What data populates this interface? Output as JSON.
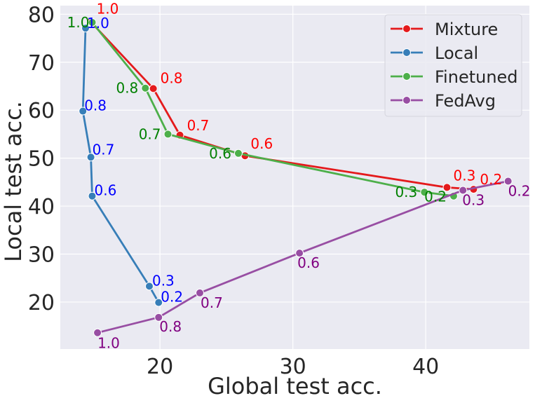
{
  "chart_data": {
    "type": "line",
    "xlabel": "Global test acc.",
    "ylabel": "Local test acc.",
    "xlim": [
      12.5,
      47.8
    ],
    "ylim": [
      10.2,
      81.8
    ],
    "xticks": [
      20,
      30,
      40
    ],
    "yticks": [
      20,
      30,
      40,
      50,
      60,
      70,
      80
    ],
    "grid": true,
    "legend_position": "top-right",
    "series": [
      {
        "name": "Mixture",
        "color": "#e41a1c",
        "points": [
          {
            "x": 14.8,
            "y": 78.4,
            "label": "1.0"
          },
          {
            "x": 19.5,
            "y": 64.5,
            "label": "0.8"
          },
          {
            "x": 21.5,
            "y": 54.8,
            "label": "0.7"
          },
          {
            "x": 26.4,
            "y": 50.5,
            "label": "0.6"
          },
          {
            "x": 41.6,
            "y": 43.9,
            "label": "0.3"
          },
          {
            "x": 43.6,
            "y": 43.5,
            "label": "0.2"
          }
        ]
      },
      {
        "name": "Local",
        "color": "#377eb8",
        "points": [
          {
            "x": 14.4,
            "y": 77.1,
            "label": "1.0"
          },
          {
            "x": 14.2,
            "y": 59.8,
            "label": "0.8"
          },
          {
            "x": 14.8,
            "y": 50.2,
            "label": "0.7"
          },
          {
            "x": 14.9,
            "y": 42.1,
            "label": "0.6"
          },
          {
            "x": 19.2,
            "y": 23.3,
            "label": "0.3"
          },
          {
            "x": 19.9,
            "y": 19.9,
            "label": "0.2"
          }
        ]
      },
      {
        "name": "Finetuned",
        "color": "#4daf4a",
        "points": [
          {
            "x": 14.9,
            "y": 78.3,
            "label": "1.0"
          },
          {
            "x": 18.9,
            "y": 64.6,
            "label": "0.8"
          },
          {
            "x": 20.6,
            "y": 55.0,
            "label": "0.7"
          },
          {
            "x": 25.9,
            "y": 51.0,
            "label": "0.6"
          },
          {
            "x": 39.9,
            "y": 42.9,
            "label": "0.3"
          },
          {
            "x": 42.1,
            "y": 42.1,
            "label": "0.2"
          }
        ]
      },
      {
        "name": "FedAvg",
        "color": "#984ea3",
        "points": [
          {
            "x": 15.3,
            "y": 13.6,
            "label": "1.0"
          },
          {
            "x": 19.9,
            "y": 16.8,
            "label": "0.8"
          },
          {
            "x": 23.0,
            "y": 21.9,
            "label": "0.7"
          },
          {
            "x": 30.5,
            "y": 30.2,
            "label": "0.6"
          },
          {
            "x": 42.8,
            "y": 43.3,
            "label": "0.3"
          },
          {
            "x": 46.2,
            "y": 45.2,
            "label": "0.2"
          }
        ]
      }
    ]
  }
}
